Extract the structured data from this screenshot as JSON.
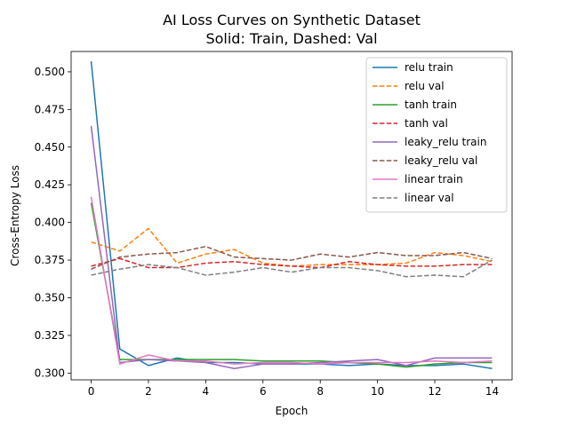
{
  "chart_data": {
    "type": "line",
    "title": "AI Loss Curves on Synthetic Dataset",
    "subtitle": "Solid: Train, Dashed: Val",
    "xlabel": "Epoch",
    "ylabel": "Cross-Entropy Loss",
    "xlim": [
      -0.7,
      14.7
    ],
    "ylim": [
      0.2955,
      0.5135
    ],
    "xticks": [
      0,
      2,
      4,
      6,
      8,
      10,
      12,
      14
    ],
    "yticks": [
      0.3,
      0.325,
      0.35,
      0.375,
      0.4,
      0.425,
      0.45,
      0.475,
      0.5
    ],
    "grid": false,
    "legend_position": "top-right",
    "x": [
      0,
      1,
      2,
      3,
      4,
      5,
      6,
      7,
      8,
      9,
      10,
      11,
      12,
      13,
      14
    ],
    "series": [
      {
        "name": "relu train",
        "color": "#1f77b4",
        "dash": false,
        "values": [
          0.507,
          0.316,
          0.305,
          0.31,
          0.307,
          0.307,
          0.306,
          0.306,
          0.306,
          0.305,
          0.306,
          0.305,
          0.305,
          0.306,
          0.303
        ]
      },
      {
        "name": "relu val",
        "color": "#ff7f0e",
        "dash": true,
        "values": [
          0.387,
          0.381,
          0.396,
          0.373,
          0.379,
          0.382,
          0.373,
          0.371,
          0.372,
          0.372,
          0.372,
          0.373,
          0.38,
          0.378,
          0.374
        ]
      },
      {
        "name": "tanh train",
        "color": "#2ca02c",
        "dash": false,
        "values": [
          0.413,
          0.309,
          0.309,
          0.309,
          0.309,
          0.309,
          0.308,
          0.308,
          0.308,
          0.307,
          0.306,
          0.304,
          0.306,
          0.307,
          0.307
        ]
      },
      {
        "name": "tanh val",
        "color": "#d62728",
        "dash": true,
        "values": [
          0.371,
          0.376,
          0.37,
          0.37,
          0.373,
          0.374,
          0.372,
          0.371,
          0.37,
          0.374,
          0.372,
          0.371,
          0.371,
          0.372,
          0.372
        ]
      },
      {
        "name": "leaky_relu train",
        "color": "#9467bd",
        "dash": false,
        "values": [
          0.464,
          0.307,
          0.309,
          0.308,
          0.307,
          0.303,
          0.306,
          0.306,
          0.307,
          0.308,
          0.309,
          0.305,
          0.31,
          0.31,
          0.31
        ]
      },
      {
        "name": "leaky_relu val",
        "color": "#8c564b",
        "dash": true,
        "values": [
          0.369,
          0.377,
          0.379,
          0.38,
          0.384,
          0.377,
          0.376,
          0.375,
          0.379,
          0.377,
          0.38,
          0.378,
          0.378,
          0.38,
          0.376
        ]
      },
      {
        "name": "linear train",
        "color": "#e377c2",
        "dash": false,
        "values": [
          0.417,
          0.306,
          0.312,
          0.308,
          0.308,
          0.306,
          0.307,
          0.307,
          0.306,
          0.307,
          0.307,
          0.307,
          0.308,
          0.307,
          0.308
        ]
      },
      {
        "name": "linear val",
        "color": "#7f7f7f",
        "dash": true,
        "values": [
          0.365,
          0.369,
          0.372,
          0.37,
          0.365,
          0.367,
          0.37,
          0.367,
          0.37,
          0.37,
          0.368,
          0.364,
          0.365,
          0.364,
          0.375
        ]
      }
    ]
  }
}
